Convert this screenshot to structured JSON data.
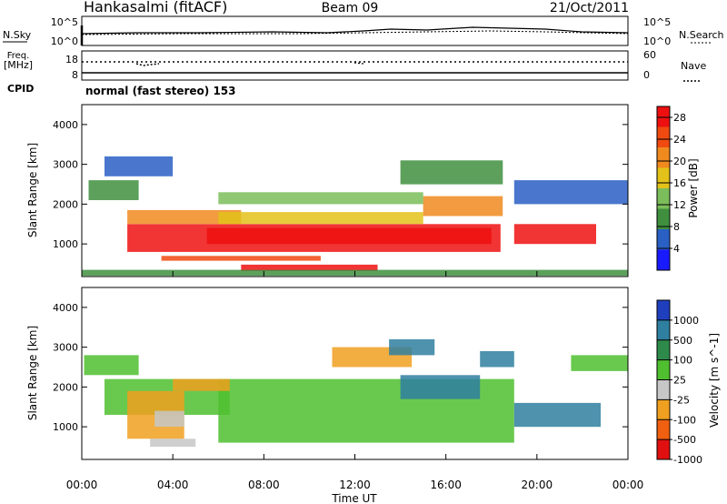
{
  "header": {
    "station": "Hankasalmi (fitACF)",
    "beam": "Beam 09",
    "date": "21/Oct/2011"
  },
  "nsky_panel": {
    "left_label": "N.Sky",
    "left_ticks": [
      "10^5",
      "10^0"
    ],
    "right_ticks": [
      "10^5",
      "10^0"
    ],
    "right_label": "N.Search"
  },
  "freq_panel": {
    "left_label_line1": "Freq.",
    "left_label_line2": "[MHz]",
    "left_ticks": [
      "18",
      "8"
    ],
    "right_ticks": [
      "60",
      "0"
    ],
    "right_label": "Nave"
  },
  "cpid": {
    "label": "CPID",
    "value": "normal (fast stereo) 153"
  },
  "chart_data": [
    {
      "type": "heatmap",
      "title": "",
      "xlabel": "Time UT",
      "ylabel": "Slant Range [km]",
      "x_ticks": [
        "00:00",
        "04:00",
        "08:00",
        "12:00",
        "16:00",
        "20:00",
        "00:00"
      ],
      "y_ticks": [
        "1000",
        "2000",
        "3000",
        "4000"
      ],
      "xlim_hours": [
        0,
        24
      ],
      "ylim_km": [
        180,
        4500
      ],
      "colorbar": {
        "label": "Power [dB]",
        "ticks": [
          "4",
          "8",
          "12",
          "16",
          "20",
          "24",
          "28"
        ],
        "range": [
          0,
          30
        ],
        "colors": [
          "#1a1aff",
          "#2a5fc4",
          "#3f8f3f",
          "#7bbd5a",
          "#e3c21a",
          "#f08a1f",
          "#f04a10",
          "#ee1010"
        ]
      },
      "regions": [
        {
          "t": [
            2.0,
            18.4
          ],
          "r": [
            800,
            1500
          ],
          "level": 28
        },
        {
          "t": [
            5.5,
            18.0
          ],
          "r": [
            1000,
            1400
          ],
          "level": 28
        },
        {
          "t": [
            19.0,
            22.6
          ],
          "r": [
            1000,
            1500
          ],
          "level": 28
        },
        {
          "t": [
            3.5,
            10.5
          ],
          "r": [
            580,
            700
          ],
          "level": 26
        },
        {
          "t": [
            7.0,
            13.0
          ],
          "r": [
            320,
            480
          ],
          "level": 27
        },
        {
          "t": [
            2.0,
            7.0
          ],
          "r": [
            1500,
            1850
          ],
          "level": 22
        },
        {
          "t": [
            15.0,
            18.5
          ],
          "r": [
            1700,
            2200
          ],
          "level": 22
        },
        {
          "t": [
            6.0,
            15.0
          ],
          "r": [
            1500,
            1800
          ],
          "level": 17
        },
        {
          "t": [
            0.3,
            2.5
          ],
          "r": [
            2100,
            2600
          ],
          "level": 10
        },
        {
          "t": [
            19.0,
            24.0
          ],
          "r": [
            2000,
            2600
          ],
          "level": 7
        },
        {
          "t": [
            1.0,
            4.0
          ],
          "r": [
            2700,
            3200
          ],
          "level": 5
        },
        {
          "t": [
            14.0,
            18.5
          ],
          "r": [
            2500,
            3100
          ],
          "level": 11
        },
        {
          "t": [
            6.0,
            15.0
          ],
          "r": [
            2000,
            2300
          ],
          "level": 13
        },
        {
          "t": [
            0.0,
            24.0
          ],
          "r": [
            200,
            350
          ],
          "level": 9
        }
      ]
    },
    {
      "type": "heatmap",
      "title": "",
      "xlabel": "Time UT",
      "ylabel": "Slant Range [km]",
      "x_ticks": [
        "00:00",
        "04:00",
        "08:00",
        "12:00",
        "16:00",
        "20:00",
        "00:00"
      ],
      "y_ticks": [
        "1000",
        "2000",
        "3000",
        "4000"
      ],
      "xlim_hours": [
        0,
        24
      ],
      "ylim_km": [
        180,
        4500
      ],
      "colorbar": {
        "label": "Velocity [m s^-1]",
        "ticks": [
          "1000",
          "500",
          "100",
          "25",
          "-25",
          "-100",
          "-500",
          "-1000"
        ],
        "range": [
          -1000,
          1000
        ],
        "colors": [
          "#1f3fbf",
          "#2f7fa0",
          "#2e8a4a",
          "#4fbf2f",
          "#c7c7c7",
          "#f0a020",
          "#f06010",
          "#e01010"
        ]
      },
      "regions": [
        {
          "t": [
            6.0,
            19.0
          ],
          "r": [
            600,
            2200
          ],
          "level": 0
        },
        {
          "t": [
            1.0,
            6.5
          ],
          "r": [
            1300,
            2200
          ],
          "level": 0
        },
        {
          "t": [
            0.1,
            2.5
          ],
          "r": [
            2300,
            2800
          ],
          "level": 0
        },
        {
          "t": [
            21.5,
            24.0
          ],
          "r": [
            2400,
            2800
          ],
          "level": 0
        },
        {
          "t": [
            2.0,
            4.5
          ],
          "r": [
            700,
            1900
          ],
          "level": -300
        },
        {
          "t": [
            3.2,
            4.5
          ],
          "r": [
            1000,
            1400
          ],
          "level": -60
        },
        {
          "t": [
            4.0,
            6.5
          ],
          "r": [
            1900,
            2200
          ],
          "level": -300
        },
        {
          "t": [
            3.0,
            5.0
          ],
          "r": [
            500,
            700
          ],
          "level": -80
        },
        {
          "t": [
            14.0,
            17.5
          ],
          "r": [
            1700,
            2300
          ],
          "level": 150
        },
        {
          "t": [
            17.5,
            19.0
          ],
          "r": [
            2500,
            2900
          ],
          "level": 200
        },
        {
          "t": [
            19.0,
            22.8
          ],
          "r": [
            1000,
            1600
          ],
          "level": 150
        },
        {
          "t": [
            11.0,
            14.5
          ],
          "r": [
            2500,
            3000
          ],
          "level": -200
        },
        {
          "t": [
            13.5,
            15.5
          ],
          "r": [
            2800,
            3200
          ],
          "level": 300
        }
      ]
    }
  ]
}
